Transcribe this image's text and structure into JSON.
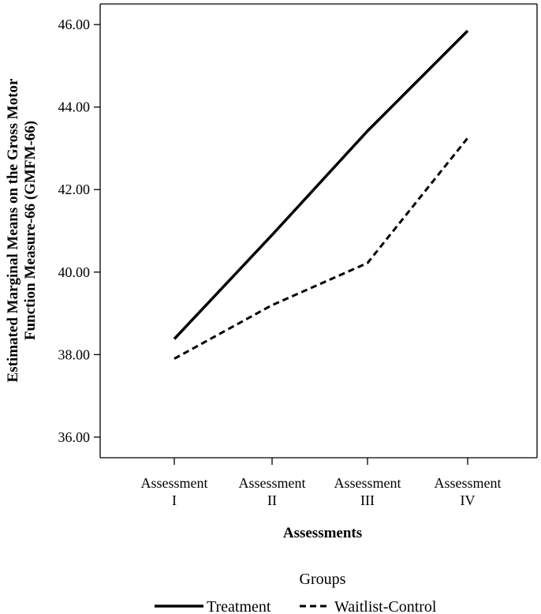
{
  "chart_data": {
    "type": "line",
    "categories": [
      [
        "Assessment",
        "I"
      ],
      [
        "Assessment",
        "II"
      ],
      [
        "Assessment",
        "III"
      ],
      [
        "Assessment",
        "IV"
      ]
    ],
    "series": [
      {
        "name": "Treatment",
        "values": [
          38.38,
          40.9,
          43.42,
          45.85
        ],
        "style": "solid",
        "color": "#000000"
      },
      {
        "name": "Waitlist-Control",
        "values": [
          37.9,
          39.2,
          40.22,
          43.25
        ],
        "style": "dashed",
        "color": "#000000"
      }
    ],
    "xlabel": "Assessments",
    "ylabel": [
      "Estimated Marginal Means on the Gross Motor",
      "Function Measure-66 (GMFM-66)"
    ],
    "yticks": [
      "36.00",
      "38.00",
      "40.00",
      "42.00",
      "44.00",
      "46.00"
    ],
    "ylim": [
      35.5,
      46.5
    ],
    "legend_title": "Groups",
    "legend_position": "bottom",
    "grid": false
  }
}
